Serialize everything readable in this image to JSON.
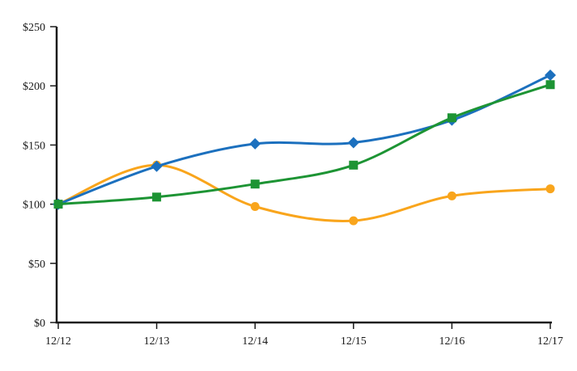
{
  "chart_data": {
    "type": "line",
    "title": "",
    "subtitle": "",
    "legend_position": "none",
    "grid": "off",
    "smooth_lines": true,
    "background_color": "#ffffff",
    "axis_color": "#1a1a1a",
    "categories": [
      "12/12",
      "12/13",
      "12/14",
      "12/15",
      "12/16",
      "12/17"
    ],
    "series": [
      {
        "name": "orange-circle-series",
        "marker": "circle",
        "color": "#F9A51C",
        "values": [
          100,
          133,
          98,
          86,
          107,
          113
        ]
      },
      {
        "name": "blue-diamond-series",
        "marker": "diamond",
        "color": "#1C70BE",
        "values": [
          100,
          132,
          151,
          152,
          171,
          209
        ]
      },
      {
        "name": "green-square-series",
        "marker": "square",
        "color": "#1D9434",
        "values": [
          100,
          106,
          117,
          133,
          173,
          201
        ]
      }
    ],
    "x_axis": {
      "tick_labels": [
        "12/12",
        "12/13",
        "12/14",
        "12/15",
        "12/16",
        "12/17"
      ]
    },
    "y_axis": {
      "tick_labels": [
        "$0",
        "$50",
        "$100",
        "$150",
        "$200",
        "$250"
      ],
      "tick_values": [
        0,
        50,
        100,
        150,
        200,
        250
      ],
      "range": [
        0,
        250
      ]
    }
  }
}
